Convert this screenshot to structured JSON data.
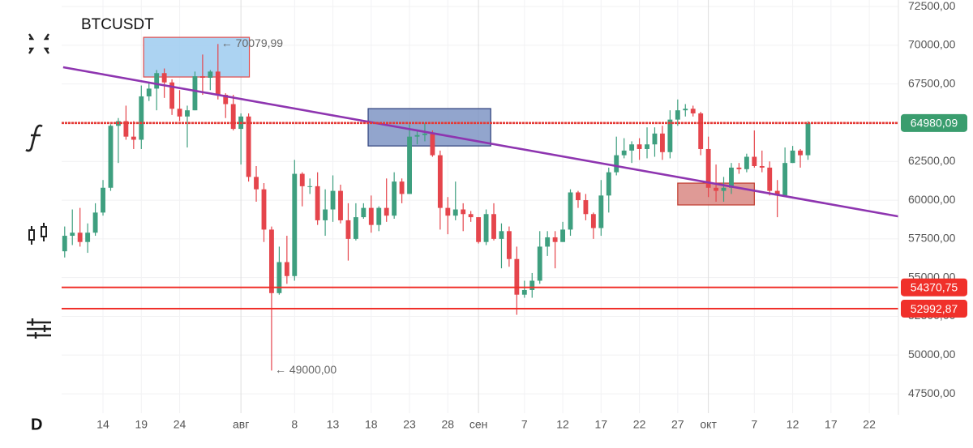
{
  "chart_data": {
    "type": "candlestick",
    "title": "BTCUSDT",
    "interval": "D",
    "up_color": "#3e9f7f",
    "down_color": "#e5454c",
    "open": [
      56700,
      57700,
      57900,
      57300,
      57900,
      59200,
      60800,
      64800,
      65100,
      64100,
      63900,
      66700,
      67200,
      68200,
      67600,
      65900,
      65400,
      65800,
      68000,
      67900,
      68300,
      66800,
      66200,
      64600,
      65400,
      61500,
      60700,
      58100,
      54000,
      56000,
      55100,
      61700,
      60900,
      60900,
      58700,
      59400,
      60600,
      58700,
      57500,
      58900,
      59500,
      58400,
      59500,
      59000,
      61200,
      60400,
      64100,
      64200,
      64300,
      62900,
      59500,
      59000,
      59400,
      59100,
      58900,
      57300,
      59100,
      57500,
      58000,
      56200,
      53900,
      54200,
      54800,
      57000,
      57600,
      57300,
      58100,
      60500,
      60000,
      59100,
      58200,
      60300,
      61800,
      62900,
      63200,
      63600,
      63300,
      63600,
      64300,
      63100,
      65200,
      65800,
      65900,
      65600,
      63300,
      60800,
      60600,
      60800,
      62100,
      62000,
      62800,
      62200,
      62100,
      60600,
      60300,
      62400,
      63200,
      62900
    ],
    "high": [
      58300,
      59400,
      59500,
      58500,
      59800,
      61300,
      64900,
      65300,
      66100,
      65100,
      67400,
      67600,
      68400,
      68500,
      67800,
      67100,
      66100,
      68300,
      69400,
      68400,
      70080,
      66900,
      66800,
      65600,
      65600,
      62200,
      61100,
      58300,
      57000,
      57700,
      62600,
      61800,
      61400,
      61800,
      60700,
      61600,
      61000,
      59800,
      59800,
      59800,
      60300,
      59600,
      61400,
      61800,
      61400,
      64900,
      64500,
      65000,
      64500,
      63200,
      60200,
      61200,
      59800,
      59300,
      58900,
      59400,
      59800,
      58500,
      58300,
      57000,
      54800,
      55300,
      58000,
      58000,
      58000,
      58600,
      60700,
      60600,
      60400,
      59200,
      61300,
      62100,
      64100,
      64000,
      63800,
      64000,
      64700,
      64700,
      64800,
      65800,
      66500,
      66200,
      66100,
      65700,
      64100,
      62300,
      61500,
      62400,
      62400,
      63000,
      64500,
      63200,
      62500,
      61300,
      63400,
      63500,
      63300,
      65100
    ],
    "low": [
      56300,
      57100,
      57000,
      56600,
      57700,
      59000,
      60600,
      62400,
      63900,
      63300,
      63300,
      66400,
      65800,
      66600,
      65500,
      65100,
      63400,
      65800,
      66800,
      67100,
      66500,
      65300,
      64500,
      62300,
      61200,
      59900,
      57300,
      49000,
      53900,
      54600,
      54800,
      59600,
      60400,
      58400,
      57700,
      58600,
      58500,
      56100,
      57400,
      58800,
      57900,
      58000,
      58600,
      58800,
      59800,
      60400,
      63600,
      63800,
      62800,
      58100,
      57800,
      58700,
      58000,
      58600,
      57200,
      57100,
      57400,
      55600,
      55700,
      52600,
      53700,
      53700,
      54600,
      56400,
      55600,
      57300,
      57700,
      59500,
      58700,
      57500,
      57700,
      59200,
      61600,
      62700,
      62400,
      62600,
      62700,
      62800,
      62600,
      62700,
      64800,
      65400,
      65400,
      62900,
      60200,
      59900,
      59900,
      60400,
      61700,
      61800,
      62100,
      61800,
      60300,
      58900,
      60200,
      62400,
      62100,
      62600
    ],
    "close": [
      57700,
      57900,
      57300,
      57900,
      59200,
      60800,
      64800,
      65100,
      64100,
      63900,
      66700,
      67200,
      68200,
      67600,
      65900,
      65400,
      65800,
      68000,
      67900,
      68300,
      66800,
      66200,
      64600,
      65400,
      61500,
      60700,
      58100,
      54000,
      56000,
      55100,
      61700,
      60900,
      60900,
      58700,
      59400,
      60600,
      58700,
      57500,
      58900,
      59500,
      58400,
      59500,
      59000,
      61200,
      60400,
      64100,
      64200,
      64300,
      62900,
      59500,
      59000,
      59400,
      59100,
      58900,
      57300,
      59100,
      57500,
      58000,
      56200,
      53900,
      54200,
      54800,
      57000,
      57600,
      57300,
      58100,
      60500,
      60000,
      59100,
      58200,
      60300,
      61800,
      62900,
      63200,
      63600,
      63300,
      63600,
      64300,
      63100,
      65200,
      65800,
      65900,
      65600,
      63300,
      60800,
      60600,
      60800,
      62100,
      62000,
      62800,
      62200,
      62100,
      60600,
      60300,
      62400,
      63200,
      62900,
      64980
    ],
    "xlim": [
      -0.4,
      108.8
    ],
    "xticks": [
      {
        "value": 5,
        "label": "14"
      },
      {
        "value": 10,
        "label": "19"
      },
      {
        "value": 15,
        "label": "24"
      },
      {
        "value": 23,
        "label": "авг"
      },
      {
        "value": 30,
        "label": "8"
      },
      {
        "value": 35,
        "label": "13"
      },
      {
        "value": 40,
        "label": "18"
      },
      {
        "value": 45,
        "label": "23"
      },
      {
        "value": 50,
        "label": "28"
      },
      {
        "value": 54,
        "label": "сен"
      },
      {
        "value": 60,
        "label": "7"
      },
      {
        "value": 65,
        "label": "12"
      },
      {
        "value": 70,
        "label": "17"
      },
      {
        "value": 75,
        "label": "22"
      },
      {
        "value": 80,
        "label": "27"
      },
      {
        "value": 84,
        "label": "окт"
      },
      {
        "value": 90,
        "label": "7"
      },
      {
        "value": 95,
        "label": "12"
      },
      {
        "value": 100,
        "label": "17"
      },
      {
        "value": 105,
        "label": "22"
      }
    ],
    "ylim": [
      46250,
      72920
    ],
    "yticks": [
      {
        "value": 47500,
        "label": "47500,00"
      },
      {
        "value": 50000,
        "label": "50000,00"
      },
      {
        "value": 52500,
        "label": "52500,00"
      },
      {
        "value": 55000,
        "label": "55000,00"
      },
      {
        "value": 57500,
        "label": "57500,00"
      },
      {
        "value": 60000,
        "label": "60000,00"
      },
      {
        "value": 62500,
        "label": "62500,00"
      },
      {
        "value": 65000,
        "label": "65000,00"
      },
      {
        "value": 67500,
        "label": "67500,00"
      },
      {
        "value": 70000,
        "label": "70000,00"
      },
      {
        "value": 72500,
        "label": "72500,00"
      }
    ],
    "grid": true,
    "price_lines": [
      {
        "value": 64980.09,
        "label": "64980,09",
        "color": "#e53935",
        "label_color": "#3a9d6e",
        "dashed": true
      },
      {
        "value": 54370.75,
        "label": "54370,75",
        "color": "#f0302a",
        "label_color": "#f0302a",
        "dashed": false
      },
      {
        "value": 52992.87,
        "label": "52992,87",
        "color": "#f0302a",
        "label_color": "#f0302a",
        "dashed": false
      }
    ],
    "trendline": {
      "x": [
        -0.2,
        108.8
      ],
      "y": [
        68580,
        58950
      ],
      "color": "#8e35b0"
    },
    "zones": [
      {
        "x": [
          10.3,
          24.1
        ],
        "y": [
          67950,
          70510
        ],
        "fill": "#9ecbf0",
        "stroke": "#e04848"
      },
      {
        "x": [
          39.6,
          55.6
        ],
        "y": [
          63500,
          65910
        ],
        "fill": "#7f95c4",
        "stroke": "#2d3f7a"
      },
      {
        "x": [
          80.0,
          90.0
        ],
        "y": [
          59690,
          61100
        ],
        "fill": "#d98884",
        "stroke": "#c0392b"
      }
    ],
    "annotations": [
      {
        "text": "← 70079,99",
        "x": 20,
        "y": 70080
      },
      {
        "text": "← 49000,00",
        "x": 27,
        "y": 49000
      }
    ]
  }
}
